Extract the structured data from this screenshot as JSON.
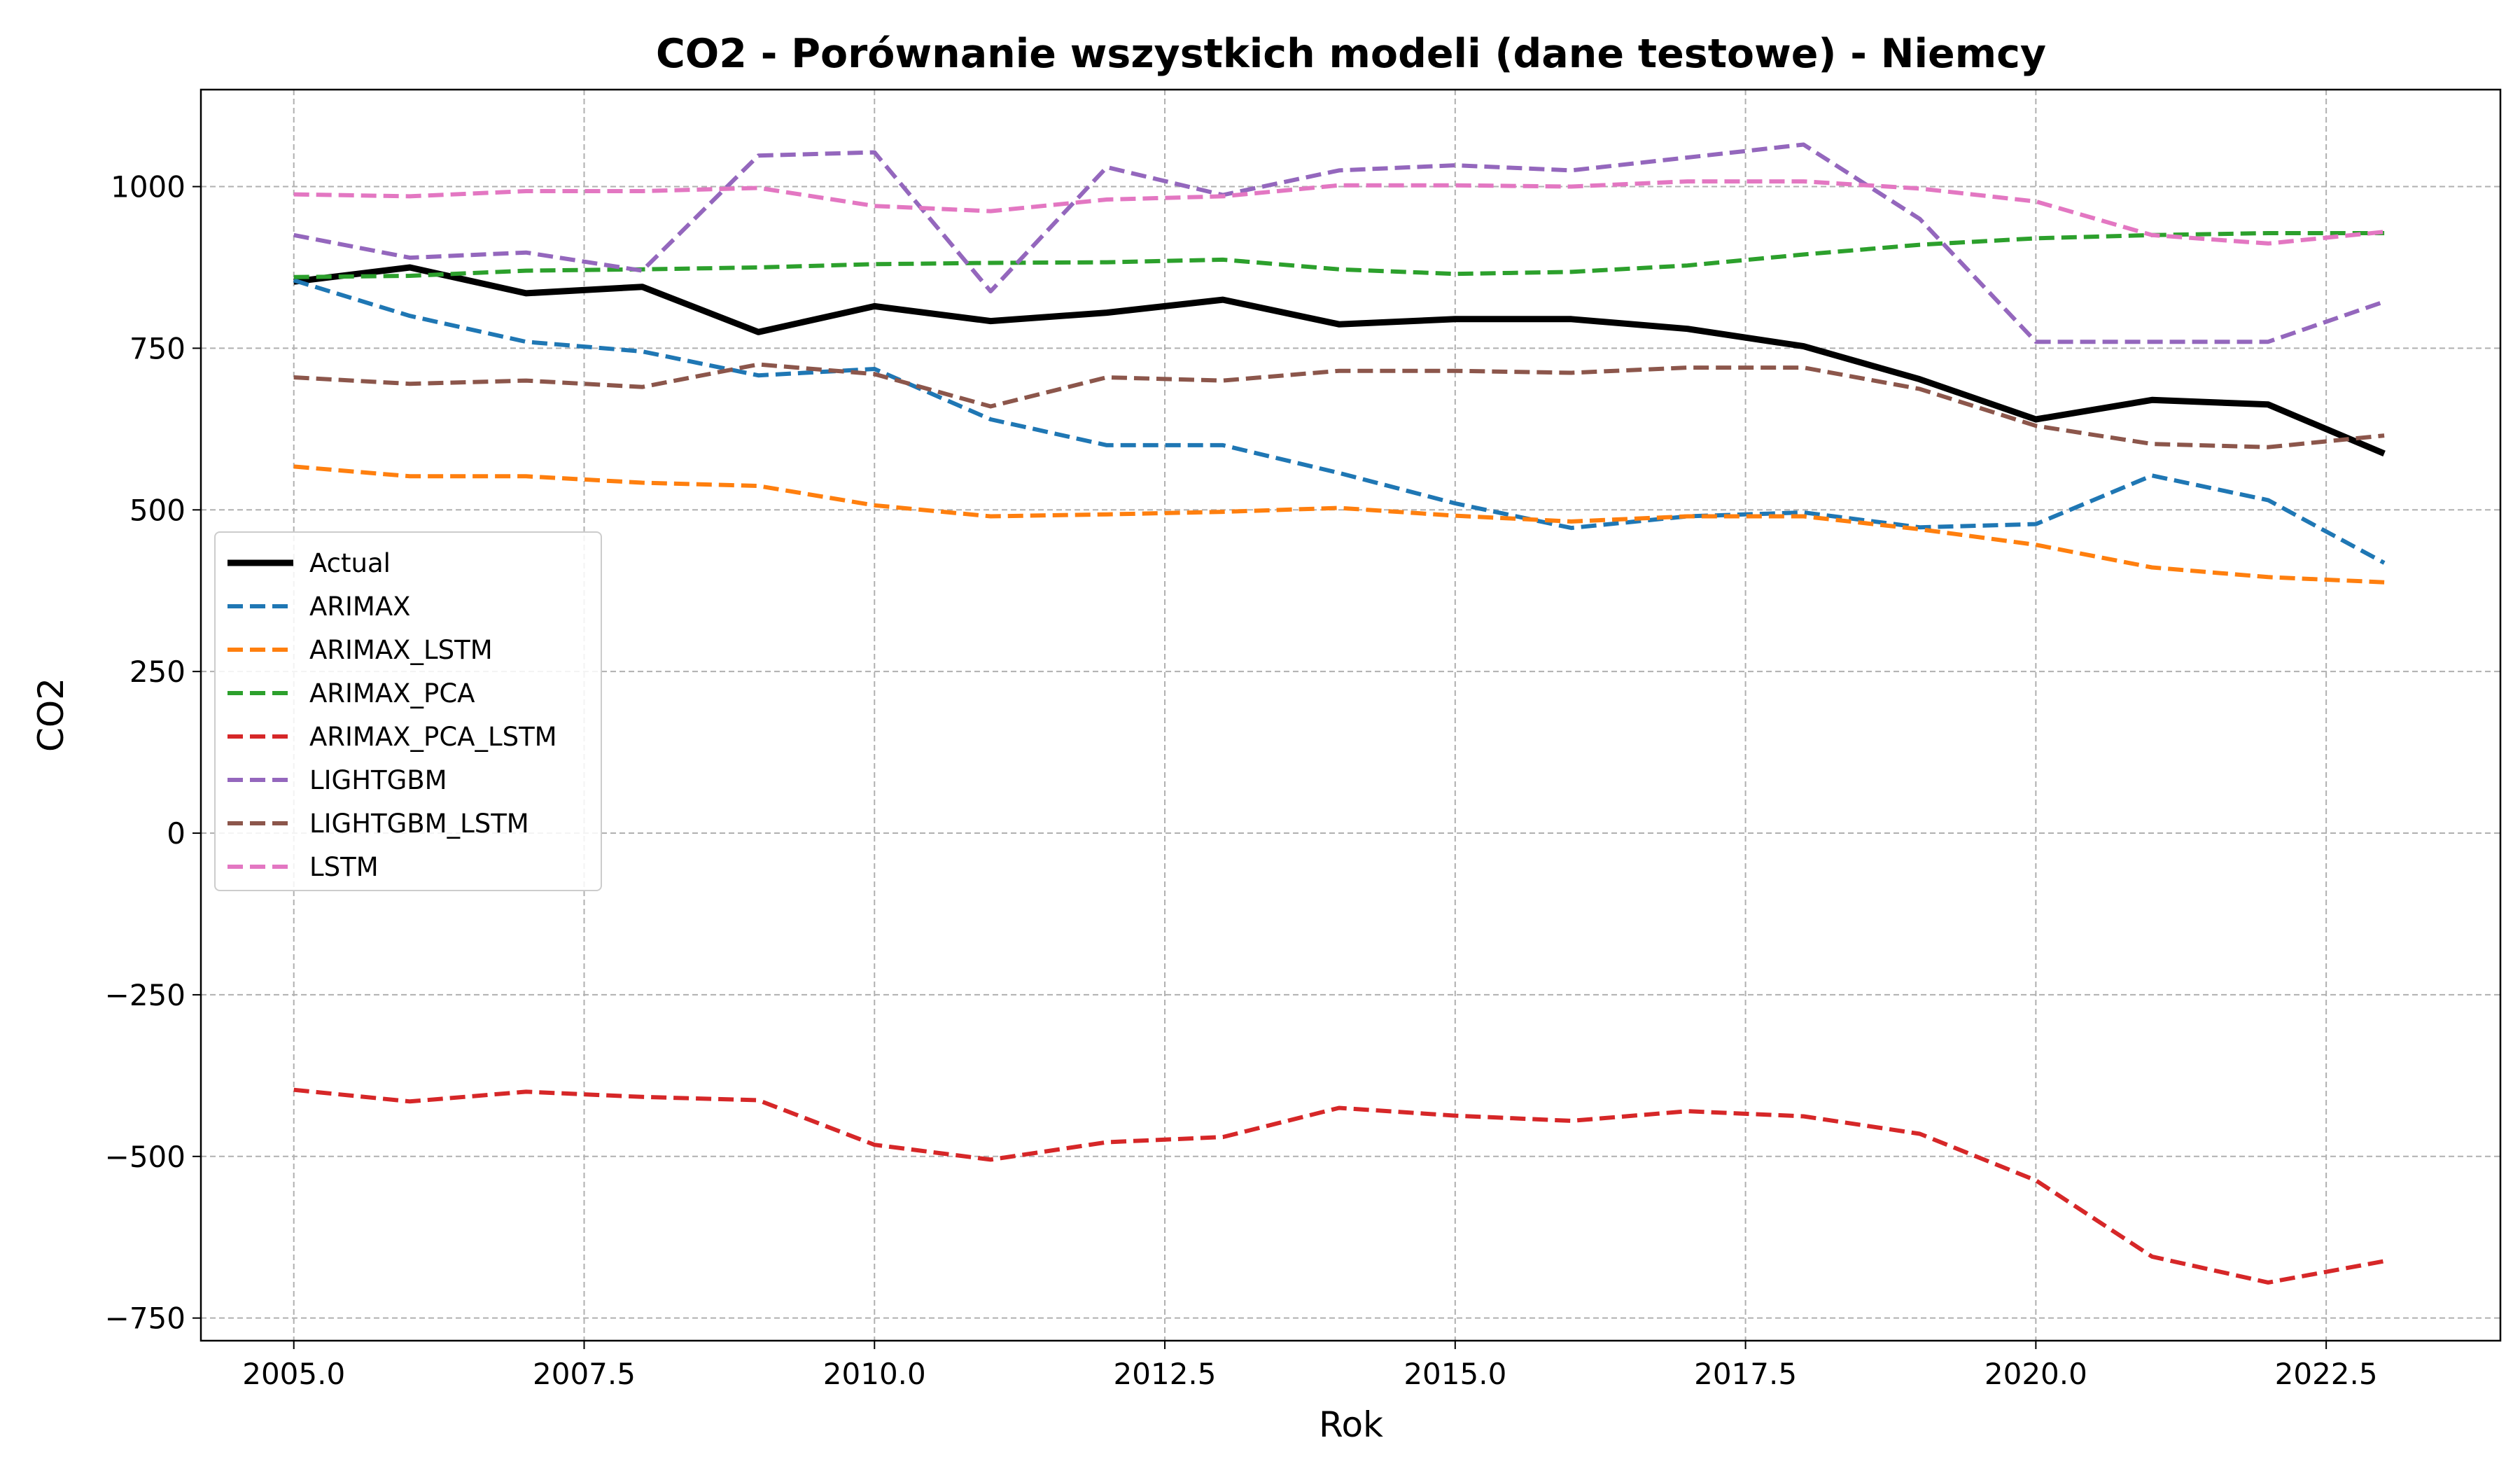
{
  "chart_data": {
    "type": "line",
    "title": "CO2 - Porównanie wszystkich modeli (dane testowe) - Niemcy",
    "xlabel": "Rok",
    "ylabel": "CO2",
    "xlim": [
      2004.2,
      2024.0
    ],
    "ylim": [
      -785,
      1150
    ],
    "xticks": [
      2005.0,
      2007.5,
      2010.0,
      2012.5,
      2015.0,
      2017.5,
      2020.0,
      2022.5
    ],
    "xtick_labels": [
      "2005.0",
      "2007.5",
      "2010.0",
      "2012.5",
      "2015.0",
      "2017.5",
      "2020.0",
      "2022.5"
    ],
    "yticks": [
      -750,
      -500,
      -250,
      0,
      250,
      500,
      750,
      1000
    ],
    "ytick_labels": [
      "−750",
      "−500",
      "−250",
      "0",
      "250",
      "500",
      "750",
      "1000"
    ],
    "grid": true,
    "legend_position": "center-left",
    "x": [
      2005,
      2006,
      2007,
      2008,
      2009,
      2010,
      2011,
      2012,
      2013,
      2014,
      2015,
      2016,
      2017,
      2018,
      2019,
      2020,
      2021,
      2022,
      2023
    ],
    "series": [
      {
        "name": "Actual",
        "color": "#000000",
        "style": "solid",
        "values": [
          853,
          875,
          835,
          845,
          775,
          815,
          792,
          805,
          825,
          787,
          795,
          795,
          780,
          753,
          702,
          640,
          670,
          663,
          587
        ]
      },
      {
        "name": "ARIMAX",
        "color": "#1f77b4",
        "style": "dashed",
        "values": [
          855,
          800,
          760,
          745,
          708,
          718,
          640,
          600,
          600,
          557,
          510,
          472,
          490,
          496,
          473,
          478,
          553,
          515,
          418
        ]
      },
      {
        "name": "ARIMAX_LSTM",
        "color": "#ff7f0e",
        "style": "dashed",
        "values": [
          567,
          552,
          552,
          542,
          537,
          507,
          490,
          493,
          497,
          503,
          491,
          482,
          490,
          490,
          470,
          446,
          411,
          396,
          388
        ]
      },
      {
        "name": "ARIMAX_PCA",
        "color": "#2ca02c",
        "style": "dashed",
        "values": [
          860,
          862,
          870,
          872,
          875,
          880,
          882,
          883,
          887,
          872,
          865,
          868,
          878,
          895,
          910,
          920,
          925,
          928,
          928
        ]
      },
      {
        "name": "ARIMAX_PCA_LSTM",
        "color": "#d62728",
        "style": "dashed",
        "values": [
          -397,
          -415,
          -400,
          -408,
          -413,
          -482,
          -505,
          -478,
          -470,
          -425,
          -437,
          -445,
          -430,
          -438,
          -465,
          -537,
          -655,
          -695,
          -662
        ]
      },
      {
        "name": "LIGHTGBM",
        "color": "#9467bd",
        "style": "dashed",
        "values": [
          925,
          890,
          898,
          870,
          1048,
          1053,
          838,
          1030,
          987,
          1025,
          1033,
          1025,
          1045,
          1065,
          950,
          760,
          760,
          760,
          822
        ]
      },
      {
        "name": "LIGHTGBM_LSTM",
        "color": "#8c564b",
        "style": "dashed",
        "values": [
          705,
          695,
          700,
          690,
          725,
          710,
          660,
          705,
          700,
          715,
          715,
          712,
          720,
          720,
          687,
          630,
          602,
          597,
          615
        ]
      },
      {
        "name": "LSTM",
        "color": "#e377c2",
        "style": "dashed",
        "values": [
          988,
          985,
          993,
          993,
          998,
          970,
          962,
          980,
          985,
          1002,
          1002,
          1000,
          1008,
          1008,
          997,
          977,
          925,
          912,
          930
        ]
      }
    ]
  }
}
